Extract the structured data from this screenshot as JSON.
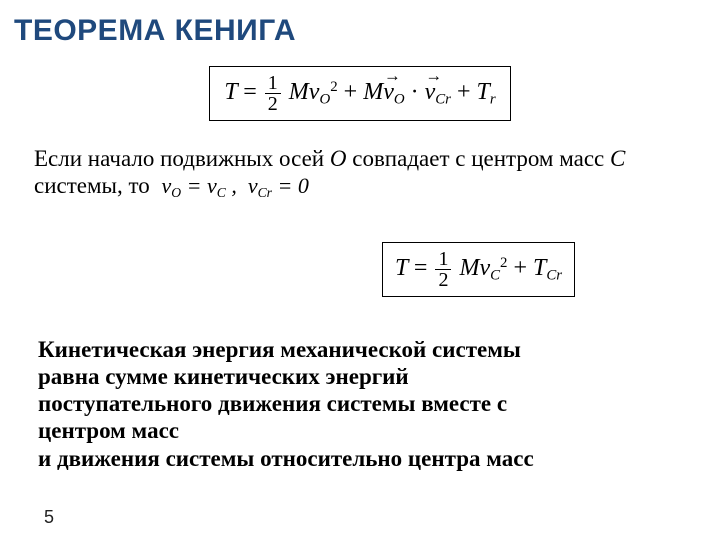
{
  "title": "ТЕОРЕМА КЕНИГА",
  "colors": {
    "title": "#1f497d",
    "text": "#000000",
    "border": "#000000",
    "background": "#ffffff"
  },
  "fonts": {
    "title_family": "Arial Narrow",
    "title_size_pt": 24,
    "title_weight": "bold",
    "body_family": "Times New Roman",
    "body_size_pt": 18,
    "theorem_weight": "bold"
  },
  "formula1": {
    "lhs": "T",
    "terms": [
      {
        "coef": "1/2",
        "factor": "M",
        "var": "v",
        "sub": "O",
        "sup": "2"
      },
      {
        "factor": "M",
        "vec1": "v",
        "sub1": "O",
        "dot": true,
        "vec2": "v",
        "sub2": "Cr"
      },
      {
        "var": "T",
        "sub": "r"
      }
    ],
    "boxed": true
  },
  "para1": {
    "text_before": "Если начало подвижных осей ",
    "var_O": "О",
    "text_mid": " совпадает с центром масс ",
    "var_C": "С",
    "text_after1": "системы, то",
    "inline": "v_O = v_C ,  v_Cr = 0"
  },
  "formula2": {
    "lhs": "T",
    "term1": {
      "coef": "1/2",
      "factor": "M",
      "var": "v",
      "sub": "C",
      "sup": "2"
    },
    "term2": {
      "var": "T",
      "sub": "Cr"
    },
    "boxed": true
  },
  "theorem": {
    "line1": "Кинетическая энергия механической системы",
    "line2": "равна сумме кинетических энергий",
    "line3": "поступательного движения системы вместе с",
    "line4": "центром масс",
    "line5": "и движения системы относительно центра масс"
  },
  "page_number": "5"
}
